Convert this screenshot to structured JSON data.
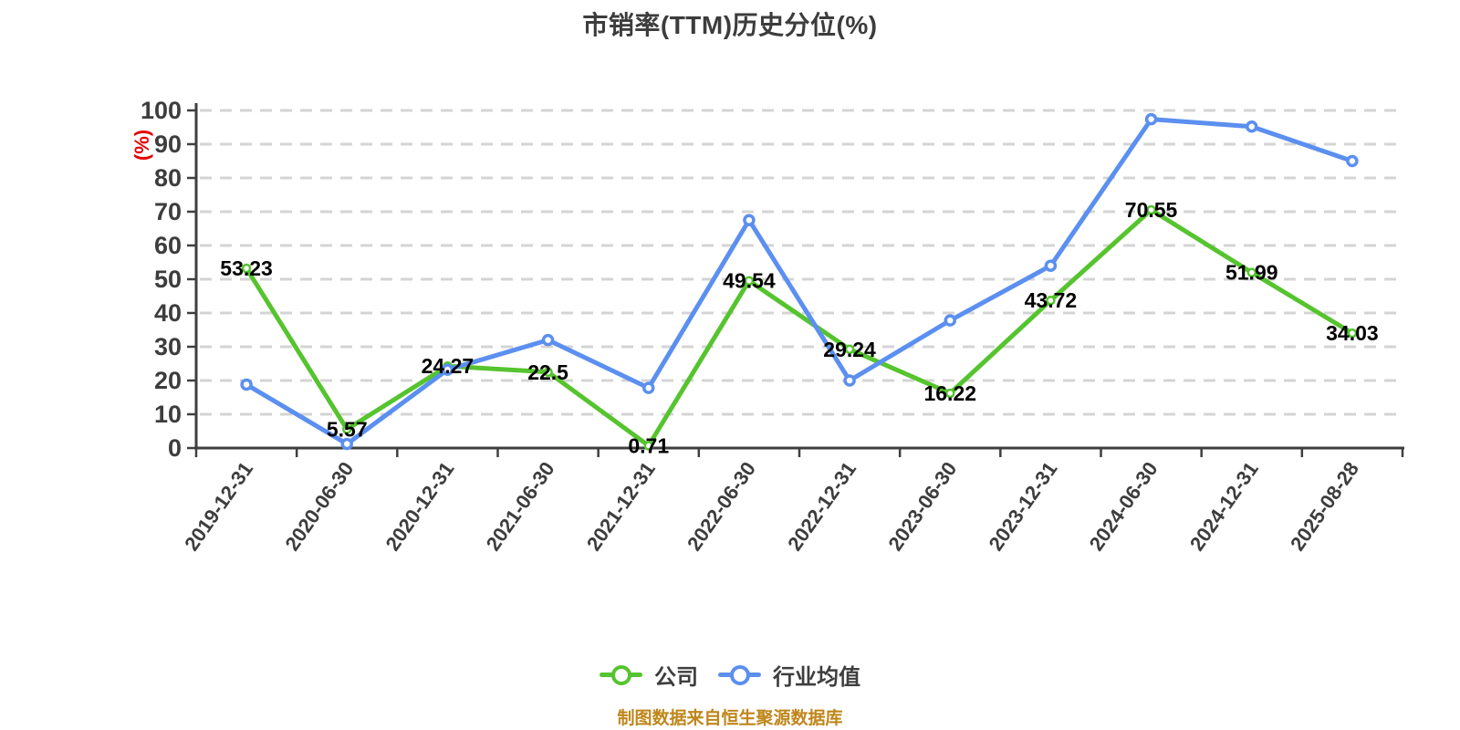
{
  "header": {
    "title": "市销率(TTM)历史分位(%)"
  },
  "footer": {
    "text": "制图数据来自恒生聚源数据库",
    "color": "#bf861b"
  },
  "legend": {
    "position": "bottom",
    "items": [
      "公司",
      "行业均值"
    ]
  },
  "chart_data": {
    "type": "line",
    "title": "市销率(TTM)历史分位(%)",
    "xlabel": "",
    "ylabel": "(%)",
    "ylabel_color": "#e60000",
    "ylim": [
      0,
      100
    ],
    "ytick_step": 10,
    "grid": true,
    "grid_style": "dashed",
    "gridline_color": "#d4d4d4",
    "axis_color": "#3f3f3f",
    "tick_label_color": "#3d3d3d",
    "data_label_color": "#000000",
    "legend_position": "bottom",
    "categories": [
      "2019-12-31",
      "2020-06-30",
      "2020-12-31",
      "2021-06-30",
      "2021-12-31",
      "2022-06-30",
      "2022-12-31",
      "2023-06-30",
      "2023-12-31",
      "2024-06-30",
      "2024-12-31",
      "2025-08-28"
    ],
    "series": [
      {
        "name": "公司",
        "color": "#55c42e",
        "data_labels": true,
        "values": [
          53.23,
          5.57,
          24.27,
          22.5,
          0.71,
          49.54,
          29.24,
          16.22,
          43.72,
          70.55,
          51.99,
          34.03
        ]
      },
      {
        "name": "行业均值",
        "color": "#5b8ff0",
        "data_labels": false,
        "values_estimated": true,
        "values": [
          18.8,
          1.2,
          23.2,
          32.0,
          17.8,
          67.5,
          20.0,
          37.8,
          54.0,
          97.4,
          95.2,
          85.0
        ]
      }
    ]
  }
}
